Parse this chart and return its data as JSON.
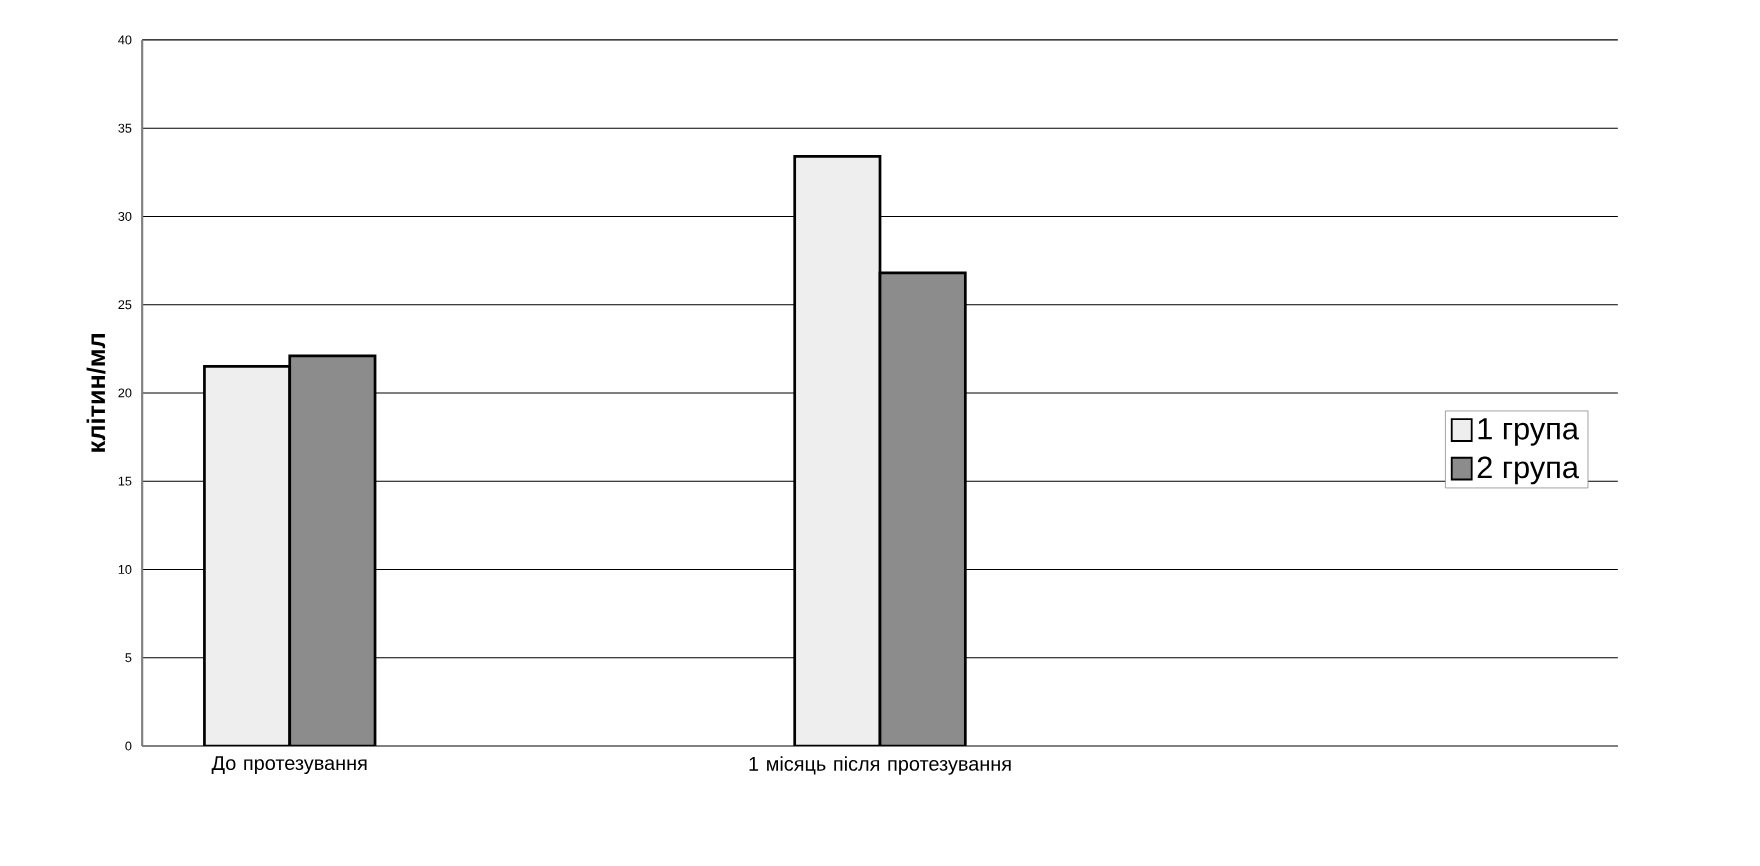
{
  "chart_data": {
    "type": "bar",
    "ylabel": "клітин/мл",
    "categories": [
      "До протезування",
      null,
      "1 місяць після протезування",
      null,
      null
    ],
    "series": [
      {
        "name": "1 група",
        "color": "#eeeeee",
        "values": [
          21.5,
          null,
          33.4,
          null,
          null
        ]
      },
      {
        "name": "2 група",
        "color": "#8c8c8c",
        "values": [
          22.1,
          null,
          26.8,
          null,
          null
        ]
      }
    ],
    "ylim": [
      0,
      40
    ],
    "yticks": [
      0,
      5,
      10,
      15,
      20,
      25,
      30,
      35,
      40
    ],
    "grid": "y",
    "legend": "right"
  }
}
